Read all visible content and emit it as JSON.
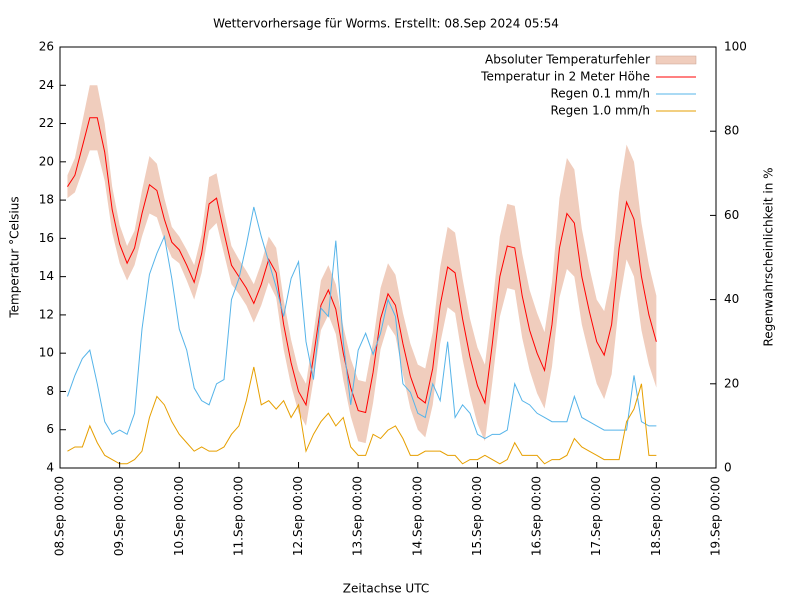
{
  "chart_data": {
    "type": "line",
    "title": "Wettervorhersage für Worms. Erstellt: 08.Sep 2024 05:54",
    "xlabel": "Zeitachse UTC",
    "ylabel": "Temperatur °Celsius",
    "y2label": "Regenwahrscheinlichkeit in %",
    "legend": "upper right",
    "x": [
      3,
      6,
      9,
      12,
      15,
      18,
      21,
      24,
      27,
      30,
      33,
      36,
      39,
      42,
      45,
      48,
      51,
      54,
      57,
      60,
      63,
      66,
      69,
      72,
      75,
      78,
      81,
      84,
      87,
      90,
      93,
      96,
      99,
      102,
      105,
      108,
      111,
      114,
      117,
      120,
      123,
      126,
      129,
      132,
      135,
      138,
      141,
      144,
      147,
      150,
      153,
      156,
      159,
      162,
      165,
      168,
      171,
      174,
      177,
      180,
      183,
      186,
      189,
      192,
      195,
      198,
      201,
      204,
      207,
      210,
      213,
      216,
      219,
      222,
      225,
      228,
      231,
      234,
      237,
      240
    ],
    "xlim": [
      0,
      264
    ],
    "xticks": [
      {
        "value": 0,
        "label": "08.Sep 00:00"
      },
      {
        "value": 24,
        "label": "09.Sep 00:00"
      },
      {
        "value": 48,
        "label": "10.Sep 00:00"
      },
      {
        "value": 72,
        "label": "11.Sep 00:00"
      },
      {
        "value": 96,
        "label": "12.Sep 00:00"
      },
      {
        "value": 120,
        "label": "13.Sep 00:00"
      },
      {
        "value": 144,
        "label": "14.Sep 00:00"
      },
      {
        "value": 168,
        "label": "15.Sep 00:00"
      },
      {
        "value": 192,
        "label": "16.Sep 00:00"
      },
      {
        "value": 216,
        "label": "17.Sep 00:00"
      },
      {
        "value": 240,
        "label": "18.Sep 00:00"
      },
      {
        "value": 264,
        "label": "19.Sep 00:00"
      }
    ],
    "ylim": [
      4,
      26
    ],
    "yticks": [
      4,
      6,
      8,
      10,
      12,
      14,
      16,
      18,
      20,
      22,
      24,
      26
    ],
    "y2lim": [
      0,
      100
    ],
    "y2ticks": [
      0,
      20,
      40,
      60,
      80,
      100
    ],
    "series": [
      {
        "name": "Absoluter Temperaturfehler",
        "type": "band",
        "color": "#f0cdbd",
        "high": [
          19.3,
          20.2,
          22.1,
          24.0,
          24.0,
          22.0,
          18.7,
          16.7,
          15.6,
          16.4,
          18.5,
          20.3,
          19.9,
          18.1,
          16.6,
          16.1,
          15.4,
          14.6,
          16.2,
          19.2,
          19.4,
          17.4,
          15.6,
          14.9,
          14.3,
          13.6,
          14.7,
          16.1,
          15.5,
          12.8,
          10.7,
          9.1,
          8.4,
          11.0,
          13.8,
          14.6,
          13.6,
          11.4,
          9.7,
          8.6,
          8.5,
          10.6,
          13.4,
          14.7,
          14.1,
          12.1,
          10.5,
          9.4,
          9.2,
          11.1,
          14.5,
          16.6,
          16.3,
          13.9,
          11.8,
          10.3,
          9.4,
          12.5,
          16.1,
          17.8,
          17.7,
          15.2,
          13.3,
          12.1,
          11.1,
          13.7,
          18.1,
          20.2,
          19.6,
          16.5,
          14.5,
          12.8,
          12.2,
          14.1,
          18.4,
          20.9,
          20.0,
          16.8,
          14.6,
          13.0
        ],
        "low": [
          18.1,
          18.4,
          19.5,
          20.6,
          20.6,
          19.0,
          16.3,
          14.7,
          13.8,
          14.6,
          16.1,
          17.3,
          17.1,
          15.9,
          15.0,
          14.7,
          13.8,
          12.8,
          14.2,
          16.4,
          16.8,
          15.2,
          13.6,
          13.1,
          12.5,
          11.6,
          12.5,
          13.7,
          12.9,
          10.2,
          8.3,
          6.9,
          6.2,
          8.6,
          11.2,
          12.0,
          11.0,
          8.6,
          6.7,
          5.4,
          5.3,
          7.4,
          10.2,
          11.5,
          10.9,
          8.9,
          7.1,
          6.0,
          5.6,
          7.3,
          10.5,
          12.4,
          12.1,
          9.7,
          7.8,
          6.3,
          5.4,
          8.5,
          11.9,
          13.4,
          13.3,
          10.8,
          9.1,
          7.9,
          7.1,
          9.3,
          12.9,
          14.4,
          14.0,
          11.5,
          9.9,
          8.4,
          7.6,
          8.9,
          12.6,
          14.9,
          14.0,
          11.2,
          9.4,
          8.2
        ]
      },
      {
        "name": "Temperatur in 2 Meter Höhe",
        "color": "#ff0000",
        "values": [
          18.7,
          19.3,
          20.8,
          22.3,
          22.3,
          20.5,
          17.5,
          15.7,
          14.7,
          15.5,
          17.3,
          18.8,
          18.5,
          17.0,
          15.8,
          15.4,
          14.6,
          13.7,
          15.2,
          17.8,
          18.1,
          16.3,
          14.6,
          14.0,
          13.4,
          12.6,
          13.6,
          14.9,
          14.2,
          11.5,
          9.5,
          8.0,
          7.3,
          9.8,
          12.5,
          13.3,
          12.3,
          10.0,
          8.2,
          7.0,
          6.9,
          9.0,
          11.8,
          13.1,
          12.5,
          10.5,
          8.8,
          7.7,
          7.4,
          9.2,
          12.5,
          14.5,
          14.2,
          11.8,
          9.8,
          8.3,
          7.4,
          10.5,
          14.0,
          15.6,
          15.5,
          13.0,
          11.2,
          10.0,
          9.1,
          11.5,
          15.5,
          17.3,
          16.8,
          14.0,
          12.2,
          10.6,
          9.9,
          11.5,
          15.5,
          17.9,
          17.0,
          14.0,
          12.0,
          10.6
        ]
      },
      {
        "name": "Regen 0.1 mm/h",
        "color": "#56b4e9",
        "axis": "y2",
        "values": [
          17,
          22,
          26,
          28,
          20,
          11,
          8,
          9,
          8,
          13,
          33,
          46,
          51,
          55,
          45,
          33,
          28,
          19,
          16,
          15,
          20,
          21,
          40,
          45,
          53,
          62,
          55,
          49,
          43,
          36,
          45,
          49,
          30,
          21,
          38,
          36,
          54,
          30,
          15,
          28,
          32,
          27,
          32,
          40,
          36,
          20,
          18,
          13,
          12,
          20,
          16,
          30,
          12,
          15,
          13,
          8,
          7,
          8,
          8,
          9,
          20,
          16,
          15,
          13,
          12,
          11,
          11,
          11,
          17,
          12,
          11,
          10,
          9,
          9,
          9,
          9,
          22,
          11,
          10,
          10
        ]
      },
      {
        "name": "Regen 1.0 mm/h",
        "color": "#e69f00",
        "axis": "y2",
        "values": [
          4,
          5,
          5,
          10,
          6,
          3,
          2,
          1,
          1,
          2,
          4,
          12,
          17,
          15,
          11,
          8,
          6,
          4,
          5,
          4,
          4,
          5,
          8,
          10,
          16,
          24,
          15,
          16,
          14,
          16,
          12,
          15,
          4,
          8,
          11,
          13,
          10,
          12,
          5,
          3,
          3,
          8,
          7,
          9,
          10,
          7,
          3,
          3,
          4,
          4,
          4,
          3,
          3,
          1,
          2,
          2,
          3,
          2,
          1,
          2,
          6,
          3,
          3,
          3,
          1,
          2,
          2,
          3,
          7,
          5,
          4,
          3,
          2,
          2,
          2,
          11,
          14,
          20,
          3,
          3
        ]
      }
    ]
  }
}
